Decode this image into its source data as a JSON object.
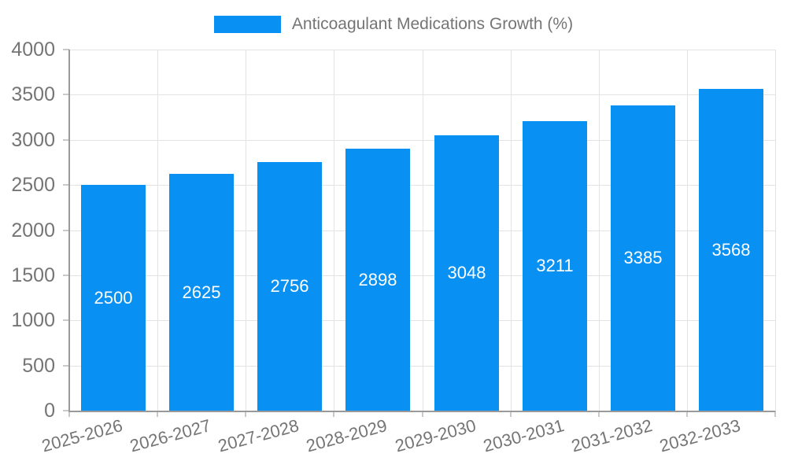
{
  "legend": {
    "label": "Anticoagulant Medications Growth (%)"
  },
  "chart_data": {
    "type": "bar",
    "title": "Anticoagulant Medications Growth (%)",
    "categories": [
      "2025-2026",
      "2026-2027",
      "2027-2028",
      "2028-2029",
      "2029-2030",
      "2030-2031",
      "2031-2032",
      "2032-2033"
    ],
    "series": [
      {
        "name": "Anticoagulant Medications Growth (%)",
        "values": [
          2500,
          2625,
          2756,
          2898,
          3048,
          3211,
          3385,
          3568
        ]
      }
    ],
    "bar_value_labels": [
      "2500",
      "2625",
      "2756",
      "2898",
      "3048",
      "3211",
      "3385",
      "3568"
    ],
    "xlabel": "",
    "ylabel": "",
    "ylim": [
      0,
      4000
    ],
    "ytick_step": 500,
    "yticks": [
      0,
      500,
      1000,
      1500,
      2000,
      2500,
      3000,
      3500,
      4000
    ],
    "grid": true,
    "legend_position": "top-center",
    "x_label_rotation_deg": -15,
    "colors": {
      "bar": "#0890F3",
      "grid": "#e3e3e3",
      "axis": "#9a9a9a",
      "tick": "#c9c9c9",
      "text": "#757575",
      "bar_label": "#ffffff"
    }
  }
}
